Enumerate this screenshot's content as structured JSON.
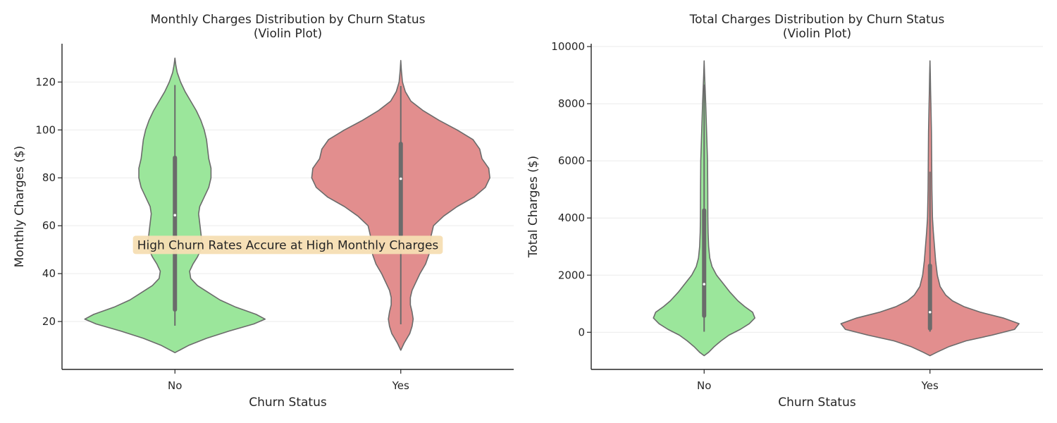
{
  "chart_data": [
    {
      "type": "violin",
      "title": "Monthly Charges Distribution by Churn Status\n(Violin Plot)",
      "xlabel": "Churn Status",
      "ylabel": "Monthly Charges ($)",
      "categories": [
        "No",
        "Yes"
      ],
      "ylim": [
        0,
        136
      ],
      "yticks": [
        20,
        40,
        60,
        80,
        100,
        120
      ],
      "grid": "y",
      "colors": [
        "#9be69b",
        "#e28e8e"
      ],
      "edge_color": "#6b6b6b",
      "annotation": {
        "text": "High Churn Rates Accure at High Monthly Charges",
        "x": "center",
        "y": 52,
        "bg": "#f5deb3"
      },
      "series": [
        {
          "name": "No",
          "box": {
            "min": 18.25,
            "q1": 25,
            "median": 64.4,
            "q3": 88.4,
            "max": 118.75
          },
          "profile": [
            [
              7,
              0
            ],
            [
              10,
              0.12
            ],
            [
              13,
              0.28
            ],
            [
              16,
              0.48
            ],
            [
              19,
              0.7
            ],
            [
              21,
              0.8
            ],
            [
              23,
              0.72
            ],
            [
              26,
              0.54
            ],
            [
              29,
              0.4
            ],
            [
              32,
              0.3
            ],
            [
              35,
              0.2
            ],
            [
              38,
              0.14
            ],
            [
              41,
              0.13
            ],
            [
              44,
              0.16
            ],
            [
              47,
              0.2
            ],
            [
              50,
              0.23
            ],
            [
              53,
              0.24
            ],
            [
              57,
              0.23
            ],
            [
              61,
              0.22
            ],
            [
              65,
              0.21
            ],
            [
              68,
              0.22
            ],
            [
              72,
              0.26
            ],
            [
              76,
              0.3
            ],
            [
              80,
              0.32
            ],
            [
              84,
              0.32
            ],
            [
              88,
              0.3
            ],
            [
              92,
              0.29
            ],
            [
              96,
              0.28
            ],
            [
              100,
              0.26
            ],
            [
              104,
              0.23
            ],
            [
              108,
              0.19
            ],
            [
              112,
              0.14
            ],
            [
              116,
              0.09
            ],
            [
              120,
              0.05
            ],
            [
              124,
              0.02
            ],
            [
              127,
              0.008
            ],
            [
              130,
              0
            ]
          ]
        },
        {
          "name": "Yes",
          "box": {
            "min": 18.85,
            "q1": 56.2,
            "median": 79.6,
            "q3": 94.2,
            "max": 118.35
          },
          "profile": [
            [
              8,
              0
            ],
            [
              11,
              0.03
            ],
            [
              15,
              0.08
            ],
            [
              18,
              0.1
            ],
            [
              21,
              0.11
            ],
            [
              24,
              0.1
            ],
            [
              27,
              0.085
            ],
            [
              30,
              0.085
            ],
            [
              33,
              0.1
            ],
            [
              36,
              0.13
            ],
            [
              40,
              0.17
            ],
            [
              44,
              0.22
            ],
            [
              48,
              0.25
            ],
            [
              52,
              0.26
            ],
            [
              56,
              0.27
            ],
            [
              60,
              0.29
            ],
            [
              64,
              0.38
            ],
            [
              68,
              0.5
            ],
            [
              72,
              0.65
            ],
            [
              76,
              0.75
            ],
            [
              80,
              0.79
            ],
            [
              84,
              0.78
            ],
            [
              88,
              0.72
            ],
            [
              92,
              0.7
            ],
            [
              96,
              0.64
            ],
            [
              100,
              0.5
            ],
            [
              104,
              0.34
            ],
            [
              108,
              0.2
            ],
            [
              112,
              0.09
            ],
            [
              116,
              0.04
            ],
            [
              120,
              0.015
            ],
            [
              125,
              0.005
            ],
            [
              129,
              0
            ]
          ]
        }
      ]
    },
    {
      "type": "violin",
      "title": "Total Charges Distribution by Churn Status\n(Violin Plot)",
      "xlabel": "Churn Status",
      "ylabel": "Total Charges ($)",
      "categories": [
        "No",
        "Yes"
      ],
      "ylim": [
        -1300,
        10100
      ],
      "yticks": [
        0,
        2000,
        4000,
        6000,
        8000,
        10000
      ],
      "grid": "y",
      "colors": [
        "#9be69b",
        "#e28e8e"
      ],
      "edge_color": "#6b6b6b",
      "series": [
        {
          "name": "No",
          "box": {
            "min": 18.8,
            "q1": 577,
            "median": 1683,
            "q3": 4264,
            "max": 8672
          },
          "profile": [
            [
              -820,
              0
            ],
            [
              -700,
              0.04
            ],
            [
              -500,
              0.09
            ],
            [
              -300,
              0.15
            ],
            [
              -100,
              0.22
            ],
            [
              100,
              0.32
            ],
            [
              300,
              0.4
            ],
            [
              500,
              0.45
            ],
            [
              700,
              0.43
            ],
            [
              900,
              0.36
            ],
            [
              1100,
              0.3
            ],
            [
              1400,
              0.23
            ],
            [
              1700,
              0.17
            ],
            [
              2000,
              0.11
            ],
            [
              2300,
              0.07
            ],
            [
              2600,
              0.05
            ],
            [
              3000,
              0.04
            ],
            [
              3500,
              0.035
            ],
            [
              4000,
              0.033
            ],
            [
              5000,
              0.032
            ],
            [
              6000,
              0.03
            ],
            [
              7000,
              0.022
            ],
            [
              8000,
              0.014
            ],
            [
              8600,
              0.008
            ],
            [
              9000,
              0.004
            ],
            [
              9500,
              0
            ]
          ]
        },
        {
          "name": "Yes",
          "box": {
            "min": 18.85,
            "q1": 134,
            "median": 704,
            "q3": 2331,
            "max": 5620
          },
          "profile": [
            [
              -820,
              0
            ],
            [
              -700,
              0.06
            ],
            [
              -500,
              0.17
            ],
            [
              -300,
              0.32
            ],
            [
              -100,
              0.55
            ],
            [
              100,
              0.75
            ],
            [
              300,
              0.79
            ],
            [
              500,
              0.65
            ],
            [
              700,
              0.45
            ],
            [
              900,
              0.3
            ],
            [
              1100,
              0.2
            ],
            [
              1300,
              0.14
            ],
            [
              1600,
              0.09
            ],
            [
              2000,
              0.065
            ],
            [
              2500,
              0.05
            ],
            [
              3000,
              0.04
            ],
            [
              3500,
              0.03
            ],
            [
              4000,
              0.022
            ],
            [
              5000,
              0.017
            ],
            [
              6000,
              0.015
            ],
            [
              7000,
              0.013
            ],
            [
              8000,
              0.008
            ],
            [
              8500,
              0.005
            ],
            [
              9000,
              0.003
            ],
            [
              9500,
              0
            ]
          ]
        }
      ]
    }
  ]
}
